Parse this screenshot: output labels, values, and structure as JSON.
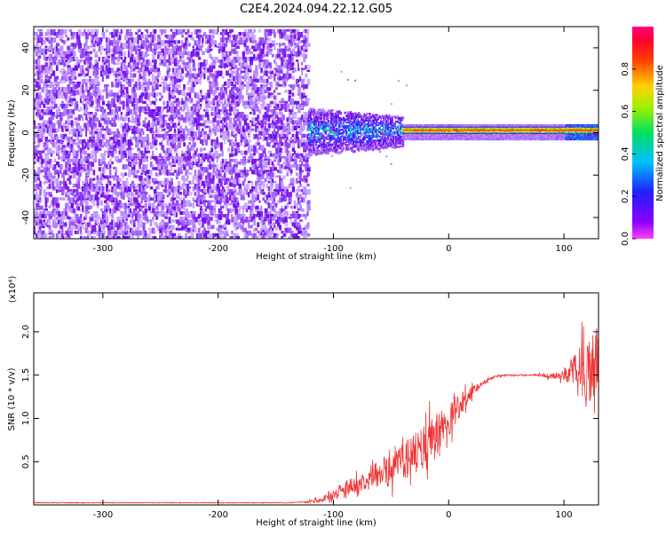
{
  "title": "C2E4.2024.094.22.12.G05",
  "chart_data": [
    {
      "type": "heatmap",
      "xlabel": "Height of straight line (km)",
      "ylabel": "Frequency (Hz)",
      "xlim": [
        -360,
        130
      ],
      "ylim": [
        -50,
        50
      ],
      "x_ticks": [
        -300,
        -200,
        -100,
        0,
        100
      ],
      "y_ticks": [
        -40,
        -20,
        0,
        20,
        40
      ],
      "grid": false,
      "colorbar": {
        "label": "Normalized spectral amplitude",
        "range": [
          0,
          1
        ],
        "ticks": [
          "0.0",
          "0.2",
          "0.4",
          "0.6",
          "0.8"
        ],
        "colormap": "rainbow",
        "colors": [
          "#e8d8ff",
          "#7a1fe0",
          "#2a2aff",
          "#00c8ff",
          "#00e060",
          "#f0ff00",
          "#ff8000",
          "#ff0000",
          "#ff00a0"
        ]
      },
      "regions": [
        {
          "x_range": [
            -360,
            -122
          ],
          "f_range": [
            -50,
            50
          ],
          "amplitude": [
            0.02,
            0.25
          ],
          "description": ""
        },
        {
          "x_range": [
            -122,
            -40
          ],
          "f_range": [
            -8,
            10
          ],
          "amplitude": [
            0.1,
            0.45
          ]
        },
        {
          "x_range": [
            -40,
            130
          ],
          "f_range": [
            -3,
            4
          ],
          "center_freq": 1.5,
          "amplitude": [
            0.5,
            0.95
          ]
        }
      ]
    },
    {
      "type": "line",
      "xlabel": "Height of straight line (km)",
      "ylabel": "SNR (10 * v/v)",
      "y_multiplier": "(x10⁴)",
      "xlim": [
        -360,
        130
      ],
      "ylim": [
        0,
        2.45
      ],
      "x_ticks": [
        -300,
        -200,
        -100,
        0,
        100
      ],
      "y_ticks": [
        0.5,
        1.0,
        1.5,
        2.0
      ],
      "color": "#ee3333",
      "grid": false,
      "series": [
        {
          "name": "",
          "x": [
            -360,
            -300,
            -200,
            -140,
            -125,
            -110,
            -100,
            -90,
            -80,
            -70,
            -60,
            -50,
            -40,
            -30,
            -20,
            -10,
            0,
            10,
            20,
            30,
            40,
            50,
            60,
            70,
            80,
            90,
            100,
            110,
            120,
            130
          ],
          "y": [
            0.02,
            0.02,
            0.02,
            0.02,
            0.03,
            0.06,
            0.12,
            0.2,
            0.25,
            0.28,
            0.32,
            0.4,
            0.5,
            0.58,
            0.65,
            0.8,
            1.0,
            1.15,
            1.3,
            1.42,
            1.48,
            1.5,
            1.5,
            1.5,
            1.5,
            1.48,
            1.5,
            1.55,
            1.6,
            1.7
          ],
          "noise": [
            0,
            0,
            0,
            0,
            0.01,
            0.04,
            0.08,
            0.12,
            0.15,
            0.18,
            0.2,
            0.25,
            0.3,
            0.35,
            0.4,
            0.4,
            0.3,
            0.2,
            0.1,
            0.05,
            0.02,
            0.01,
            0.01,
            0.01,
            0.02,
            0.05,
            0.1,
            0.3,
            0.6,
            0.5
          ]
        }
      ]
    }
  ]
}
